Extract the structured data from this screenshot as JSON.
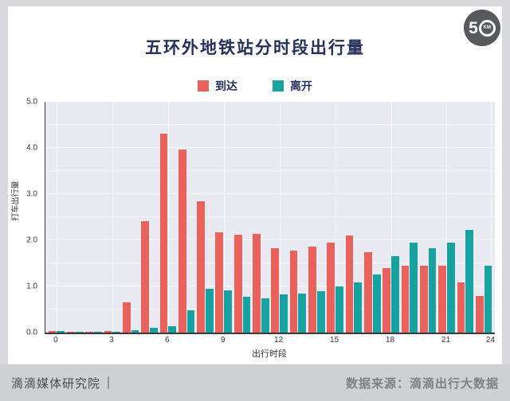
{
  "logo": {
    "digit": "5",
    "unit": "KM"
  },
  "header": {
    "title": "五环外地铁站分时段出行量"
  },
  "footer": {
    "left": "滴滴媒体研究院",
    "separator": "|",
    "right": "数据来源：滴滴出行大数据"
  },
  "chart_data": {
    "type": "bar",
    "title": "五环外地铁站分时段出行量",
    "xlabel": "出行时段",
    "ylabel": "打车出行量",
    "ylim": [
      0,
      5
    ],
    "yticks": [
      0,
      1,
      2,
      3,
      4,
      5
    ],
    "xticks": [
      0,
      3,
      6,
      9,
      12,
      15,
      18,
      21,
      24
    ],
    "grid": true,
    "legend_position": "top",
    "plot_bg": "#E9E9F1",
    "categories": [
      0,
      1,
      2,
      3,
      4,
      5,
      6,
      7,
      8,
      9,
      10,
      11,
      12,
      13,
      14,
      15,
      16,
      17,
      18,
      19,
      20,
      21,
      22,
      23
    ],
    "series": [
      {
        "name": "到达",
        "color": "#E8625B",
        "values": [
          0.04,
          0.02,
          0.02,
          0.03,
          0.66,
          2.41,
          4.31,
          3.96,
          2.84,
          2.17,
          2.12,
          2.13,
          1.83,
          1.78,
          1.86,
          1.95,
          2.1,
          1.74,
          1.4,
          1.45,
          1.45,
          1.45,
          1.09,
          0.8
        ]
      },
      {
        "name": "离开",
        "color": "#16A2A0",
        "values": [
          0.04,
          0.02,
          0.02,
          0.02,
          0.05,
          0.1,
          0.14,
          0.48,
          0.95,
          0.91,
          0.78,
          0.75,
          0.83,
          0.85,
          0.9,
          1.0,
          1.08,
          1.26,
          1.66,
          1.95,
          1.83,
          1.95,
          2.22,
          1.45
        ]
      }
    ]
  }
}
